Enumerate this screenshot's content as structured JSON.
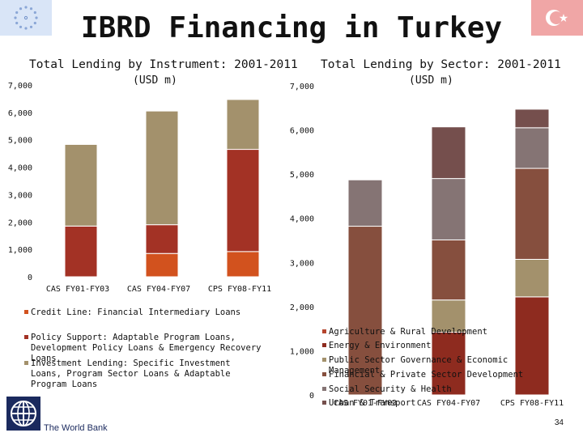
{
  "title": "IBRD Financing in Turkey",
  "logos": {
    "left": "eu-flag",
    "right": "turkey-flag",
    "bottom": "world-bank-logo"
  },
  "footer": {
    "org_name": "The World Bank",
    "page_number": "34"
  },
  "chart_data": [
    {
      "type": "bar",
      "stacked": true,
      "title": "Total Lending by Instrument: 2001-2011",
      "subtitle": "(USD m)",
      "categories": [
        "CAS FY01-FY03",
        "CAS FY04-FY07",
        "CPS FY08-FY11"
      ],
      "yticks": [
        "0",
        "1,000",
        "2,000",
        "3,000",
        "4,000",
        "5,000",
        "6,000",
        "7,000"
      ],
      "ylim": [
        0,
        7000
      ],
      "series": [
        {
          "name": "Credit Line: Financial Intermediary Loans",
          "color": "#d2521e",
          "values": [
            0,
            850,
            920
          ]
        },
        {
          "name": "Policy Support: Adaptable Program Loans, Development Policy Loans & Emergency Recovery Loans",
          "color": "#a33225",
          "values": [
            1850,
            1050,
            3730
          ]
        },
        {
          "name": "Investment Lending: Specific Investment Loans, Program Sector Loans & Adaptable Program Loans",
          "color": "#a3916c",
          "values": [
            2980,
            4150,
            1820
          ]
        }
      ],
      "legend_position": "bottom"
    },
    {
      "type": "bar",
      "stacked": true,
      "title": "Total Lending by Sector: 2001-2011",
      "subtitle": "(USD m)",
      "categories": [
        "CAS FY01-FY03",
        "CAS FY04-FY07",
        "CPS FY08-FY11"
      ],
      "yticks": [
        "0",
        "1,000",
        "2,000",
        "3,000",
        "4,000",
        "5,000",
        "6,000",
        "7,000"
      ],
      "ylim": [
        0,
        7000
      ],
      "series": [
        {
          "name": "Agriculture & Rural Development",
          "color": "#b5452e",
          "values": [
            0,
            0,
            0
          ]
        },
        {
          "name": "Energy & Environment",
          "color": "#8e2b1f",
          "values": [
            0,
            1420,
            2220
          ]
        },
        {
          "name": "Public Sector Governance & Economic Management",
          "color": "#a3916c",
          "values": [
            0,
            730,
            850
          ]
        },
        {
          "name": "Financial & Private Sector Development",
          "color": "#864f3e",
          "values": [
            3820,
            1360,
            2060
          ]
        },
        {
          "name": "Social Security & Health",
          "color": "#857474",
          "values": [
            1050,
            1390,
            920
          ]
        },
        {
          "name": "Urban & Transport",
          "color": "#754f4d",
          "values": [
            0,
            1170,
            420
          ]
        }
      ],
      "legend_position": "bottom-right"
    }
  ]
}
